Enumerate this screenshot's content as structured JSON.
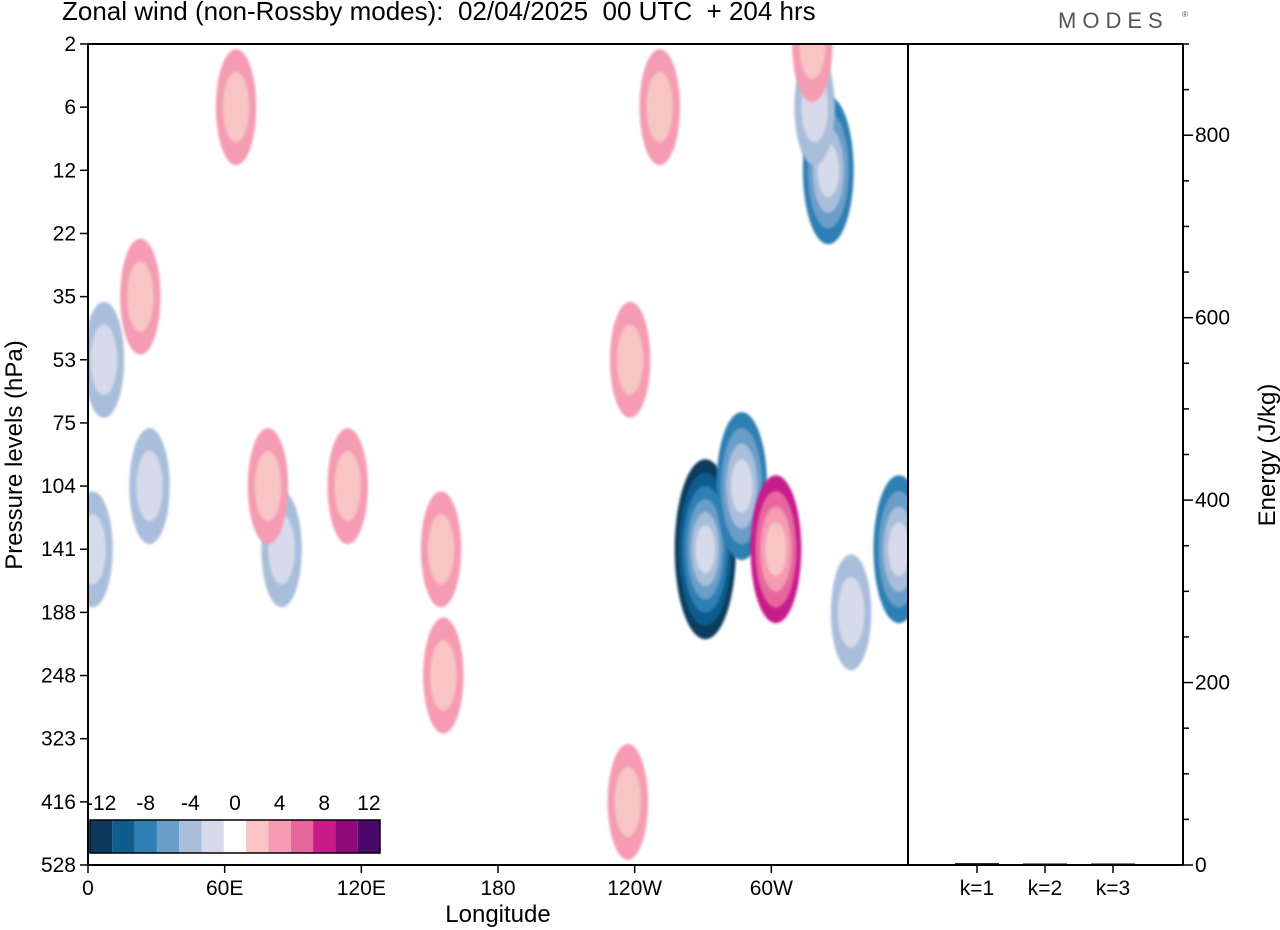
{
  "title": "Zonal wind (non-Rossby modes):  02/04/2025  00 UTC  + 204 hrs",
  "logo": {
    "text": "MODES",
    "mark": "®"
  },
  "colors": {
    "scale": [
      "#0d3a5c",
      "#0f5c8e",
      "#2e7fb3",
      "#6a9ec8",
      "#a9bedb",
      "#d6daea",
      "#ffffff",
      "#f8c4c4",
      "#f59bb3",
      "#e8669e",
      "#c71b8c",
      "#8e0a7a",
      "#4b0868"
    ]
  },
  "chart_data": [
    {
      "type": "heatmap",
      "title": "",
      "xlabel": "Longitude",
      "ylabel": "Pressure levels (hPa)",
      "x_ticks": [
        "0",
        "60E",
        "120E",
        "180",
        "120W",
        "60W"
      ],
      "x_tick_values": [
        0,
        60,
        120,
        180,
        240,
        300
      ],
      "xlim": [
        0,
        360
      ],
      "y_ticks": [
        "2",
        "6",
        "12",
        "22",
        "35",
        "53",
        "75",
        "104",
        "141",
        "188",
        "248",
        "323",
        "416",
        "528"
      ],
      "colorbar": {
        "levels": [
          -12,
          -8,
          -4,
          0,
          4,
          8,
          12
        ],
        "labels": [
          "-12",
          "-8",
          "-4",
          "0",
          "4",
          "8",
          "12"
        ]
      },
      "features": [
        {
          "kind": "easterly",
          "lon": 271,
          "level": "141",
          "value": -12
        },
        {
          "kind": "easterly",
          "lon": 287,
          "level": "104",
          "value": -8
        },
        {
          "kind": "easterly",
          "lon": 356,
          "level": "141",
          "value": -8
        },
        {
          "kind": "easterly",
          "lon": 325,
          "level": "12",
          "value": -8
        },
        {
          "kind": "easterly",
          "lon": 2,
          "level": "141",
          "value": -4
        },
        {
          "kind": "easterly",
          "lon": 7,
          "level": "53",
          "value": -4
        },
        {
          "kind": "easterly",
          "lon": 27,
          "level": "104",
          "value": -4
        },
        {
          "kind": "easterly",
          "lon": 85,
          "level": "141",
          "value": -4
        },
        {
          "kind": "easterly",
          "lon": 335,
          "level": "188",
          "value": -4
        },
        {
          "kind": "easterly",
          "lon": 319,
          "level": "6",
          "value": -4
        },
        {
          "kind": "westerly",
          "lon": 302,
          "level": "141",
          "value": 8
        },
        {
          "kind": "westerly",
          "lon": 155,
          "level": "141",
          "value": 4
        },
        {
          "kind": "westerly",
          "lon": 156,
          "level": "248",
          "value": 4
        },
        {
          "kind": "westerly",
          "lon": 114,
          "level": "104",
          "value": 4
        },
        {
          "kind": "westerly",
          "lon": 251,
          "level": "6",
          "value": 4
        },
        {
          "kind": "westerly",
          "lon": 65,
          "level": "6",
          "value": 4
        },
        {
          "kind": "westerly",
          "lon": 23,
          "level": "35",
          "value": 4
        },
        {
          "kind": "westerly",
          "lon": 237,
          "level": "416",
          "value": 4
        },
        {
          "kind": "westerly",
          "lon": 79,
          "level": "104",
          "value": 4
        },
        {
          "kind": "westerly",
          "lon": 238,
          "level": "53",
          "value": 4
        },
        {
          "kind": "westerly",
          "lon": 318,
          "level": "2",
          "value": 4
        }
      ]
    },
    {
      "type": "bar",
      "title": "",
      "xlabel": "",
      "ylabel": "Energy (J/kg)",
      "categories": [
        "k=1",
        "k=2",
        "k=3"
      ],
      "values": [
        2,
        1,
        1
      ],
      "ylim": [
        0,
        900
      ],
      "y_ticks": [
        "0",
        "200",
        "400",
        "600",
        "800"
      ],
      "y_tick_values": [
        0,
        200,
        400,
        600,
        800
      ]
    }
  ]
}
